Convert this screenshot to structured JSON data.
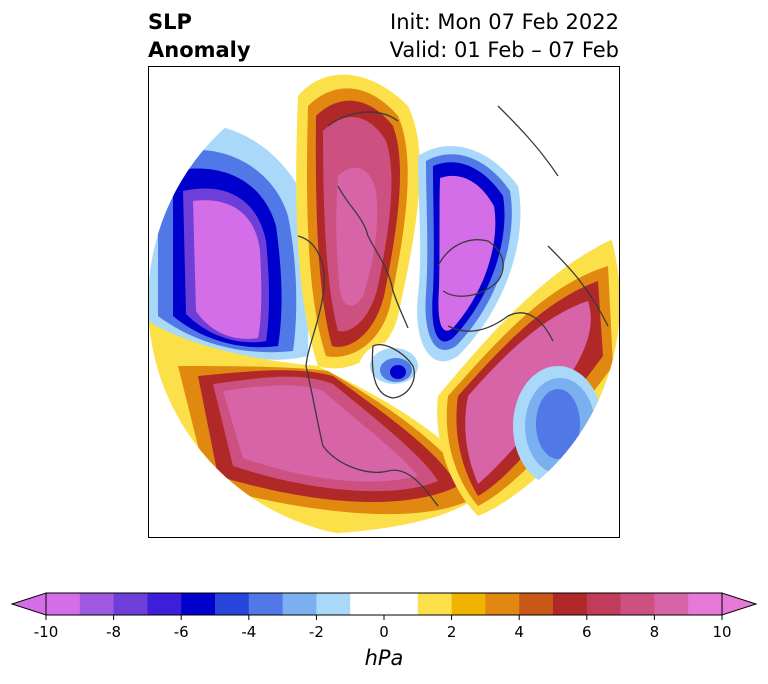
{
  "title": {
    "left_line1": "SLP",
    "left_line2": "Anomaly",
    "right_line1": "Init: Mon 07 Feb 2022",
    "right_line2": "Valid: 01 Feb – 07 Feb"
  },
  "colorbar": {
    "unit": "hPa",
    "tick_labels": [
      "-10",
      "-8",
      "-6",
      "-4",
      "-2",
      "0",
      "2",
      "4",
      "6",
      "8",
      "10"
    ],
    "colors": [
      "#d46ee8",
      "#a05ae0",
      "#6e3fd8",
      "#3e1ed8",
      "#0000cd",
      "#2846dc",
      "#5078e6",
      "#7ab0f0",
      "#aad8f8",
      "#ffffff",
      "#ffffff",
      "#fce04a",
      "#f0b400",
      "#e08810",
      "#c85818",
      "#b02828",
      "#c03c5a",
      "#cc5080",
      "#d864a8",
      "#e678d8"
    ]
  },
  "map": {
    "colors": {
      "strong_low": "#d46ee8",
      "low_blue": "#0000cd",
      "mid_blue": "#5078e6",
      "light_blue": "#aad8f8",
      "yellow": "#fce04a",
      "orange": "#e08810",
      "dark_red": "#b02828",
      "crimson": "#c03c5a",
      "strong_high": "#d864a8",
      "coast": "#3a3a3a"
    }
  }
}
